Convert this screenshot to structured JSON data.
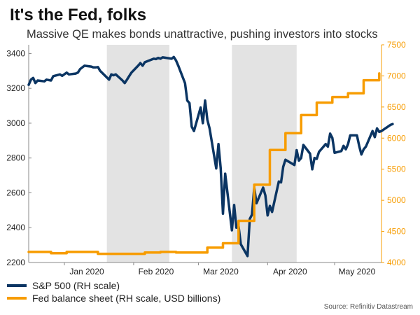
{
  "title": "It's the Fed, folks",
  "subtitle": "Massive QE makes bonds unattractive, pushing investors into stocks",
  "source": "Source: Refinitiv Datastream",
  "colors": {
    "sp500": "#0b3563",
    "fed": "#f79c00",
    "shade": "#e3e3e3",
    "axis_left": "#222222",
    "axis_right": "#f79c00"
  },
  "legend": [
    {
      "label": "S&P 500 (RH scale)",
      "series": "sp500"
    },
    {
      "label": "Fed balance sheet (RH scale, USD billions)",
      "series": "fed"
    }
  ],
  "chart_data": {
    "type": "line",
    "title": "It's the Fed, folks",
    "subtitle": "Massive QE makes bonds unattractive, pushing investors into stocks",
    "x_ticks": [
      {
        "label": "Jan 2020",
        "date": "2020-01-01"
      },
      {
        "label": "Feb 2020",
        "date": "2020-02-01"
      },
      {
        "label": "Mar 2020",
        "date": "2020-03-01"
      },
      {
        "label": "Apr 2020",
        "date": "2020-04-01"
      },
      {
        "label": "May 2020",
        "date": "2020-05-01"
      }
    ],
    "xlim": [
      "2019-12-16",
      "2020-05-22"
    ],
    "left_axis": {
      "ylim": [
        2200,
        3450
      ],
      "ticks": [
        2200,
        2400,
        2600,
        2800,
        3000,
        3200,
        3400
      ]
    },
    "right_axis": {
      "ylim": [
        4000,
        7500
      ],
      "ticks": [
        4000,
        4500,
        5000,
        5500,
        6000,
        6500,
        7000,
        7500
      ]
    },
    "shaded_periods": [
      [
        "2020-01-20",
        "2020-02-17"
      ],
      [
        "2020-03-16",
        "2020-04-14"
      ]
    ],
    "grid": false,
    "legend_position": "bottom-left",
    "series": [
      {
        "name": "S&P 500 (RH scale)",
        "axis": "left",
        "style": "line",
        "points": [
          [
            "2019-12-16",
            3220
          ],
          [
            "2019-12-17",
            3250
          ],
          [
            "2019-12-18",
            3260
          ],
          [
            "2019-12-19",
            3230
          ],
          [
            "2019-12-20",
            3245
          ],
          [
            "2019-12-23",
            3240
          ],
          [
            "2019-12-24",
            3250
          ],
          [
            "2019-12-26",
            3245
          ],
          [
            "2019-12-27",
            3270
          ],
          [
            "2019-12-30",
            3280
          ],
          [
            "2019-12-31",
            3272
          ],
          [
            "2020-01-02",
            3290
          ],
          [
            "2020-01-03",
            3280
          ],
          [
            "2020-01-06",
            3285
          ],
          [
            "2020-01-07",
            3290
          ],
          [
            "2020-01-08",
            3310
          ],
          [
            "2020-01-09",
            3320
          ],
          [
            "2020-01-10",
            3330
          ],
          [
            "2020-01-13",
            3325
          ],
          [
            "2020-01-14",
            3320
          ],
          [
            "2020-01-15",
            3320
          ],
          [
            "2020-01-16",
            3322
          ],
          [
            "2020-01-17",
            3300
          ],
          [
            "2020-01-21",
            3250
          ],
          [
            "2020-01-22",
            3280
          ],
          [
            "2020-01-23",
            3275
          ],
          [
            "2020-01-24",
            3280
          ],
          [
            "2020-01-27",
            3245
          ],
          [
            "2020-01-28",
            3230
          ],
          [
            "2020-01-29",
            3250
          ],
          [
            "2020-01-30",
            3270
          ],
          [
            "2020-01-31",
            3290
          ],
          [
            "2020-02-03",
            3330
          ],
          [
            "2020-02-04",
            3345
          ],
          [
            "2020-02-05",
            3330
          ],
          [
            "2020-02-06",
            3350
          ],
          [
            "2020-02-07",
            3355
          ],
          [
            "2020-02-10",
            3370
          ],
          [
            "2020-02-11",
            3368
          ],
          [
            "2020-02-12",
            3375
          ],
          [
            "2020-02-13",
            3370
          ],
          [
            "2020-02-14",
            3378
          ],
          [
            "2020-02-18",
            3370
          ],
          [
            "2020-02-19",
            3380
          ],
          [
            "2020-02-20",
            3360
          ],
          [
            "2020-02-21",
            3330
          ],
          [
            "2020-02-24",
            3230
          ],
          [
            "2020-02-25",
            3130
          ],
          [
            "2020-02-26",
            3115
          ],
          [
            "2020-02-27",
            2980
          ],
          [
            "2020-02-28",
            2955
          ],
          [
            "2020-03-02",
            3090
          ],
          [
            "2020-03-03",
            3000
          ],
          [
            "2020-03-04",
            3130
          ],
          [
            "2020-03-05",
            3020
          ],
          [
            "2020-03-06",
            2970
          ],
          [
            "2020-03-09",
            2740
          ],
          [
            "2020-03-10",
            2880
          ],
          [
            "2020-03-11",
            2740
          ],
          [
            "2020-03-12",
            2480
          ],
          [
            "2020-03-13",
            2710
          ],
          [
            "2020-03-16",
            2385
          ],
          [
            "2020-03-17",
            2530
          ],
          [
            "2020-03-18",
            2400
          ],
          [
            "2020-03-19",
            2410
          ],
          [
            "2020-03-20",
            2305
          ],
          [
            "2020-03-23",
            2237
          ],
          [
            "2020-03-24",
            2450
          ],
          [
            "2020-03-25",
            2475
          ],
          [
            "2020-03-26",
            2630
          ],
          [
            "2020-03-27",
            2540
          ],
          [
            "2020-03-30",
            2630
          ],
          [
            "2020-03-31",
            2585
          ],
          [
            "2020-04-01",
            2470
          ],
          [
            "2020-04-02",
            2525
          ],
          [
            "2020-04-03",
            2490
          ],
          [
            "2020-04-06",
            2665
          ],
          [
            "2020-04-07",
            2660
          ],
          [
            "2020-04-08",
            2750
          ],
          [
            "2020-04-09",
            2790
          ],
          [
            "2020-04-13",
            2760
          ],
          [
            "2020-04-14",
            2845
          ],
          [
            "2020-04-15",
            2785
          ],
          [
            "2020-04-16",
            2800
          ],
          [
            "2020-04-17",
            2875
          ],
          [
            "2020-04-20",
            2825
          ],
          [
            "2020-04-21",
            2735
          ],
          [
            "2020-04-22",
            2800
          ],
          [
            "2020-04-23",
            2795
          ],
          [
            "2020-04-24",
            2835
          ],
          [
            "2020-04-27",
            2880
          ],
          [
            "2020-04-28",
            2865
          ],
          [
            "2020-04-29",
            2940
          ],
          [
            "2020-04-30",
            2915
          ],
          [
            "2020-05-01",
            2830
          ],
          [
            "2020-05-04",
            2840
          ],
          [
            "2020-05-05",
            2870
          ],
          [
            "2020-05-06",
            2850
          ],
          [
            "2020-05-07",
            2880
          ],
          [
            "2020-05-08",
            2930
          ],
          [
            "2020-05-11",
            2930
          ],
          [
            "2020-05-12",
            2870
          ],
          [
            "2020-05-13",
            2820
          ],
          [
            "2020-05-14",
            2850
          ],
          [
            "2020-05-15",
            2865
          ],
          [
            "2020-05-18",
            2955
          ],
          [
            "2020-05-19",
            2920
          ],
          [
            "2020-05-20",
            2970
          ],
          [
            "2020-05-21",
            2950
          ],
          [
            "2020-05-22",
            2955
          ],
          [
            "2020-05-26",
            2990
          ],
          [
            "2020-05-27",
            2995
          ]
        ]
      },
      {
        "name": "Fed balance sheet (RH scale, USD billions)",
        "axis": "right",
        "style": "step",
        "points": [
          [
            "2019-12-16",
            4170
          ],
          [
            "2019-12-26",
            4150
          ],
          [
            "2020-01-02",
            4170
          ],
          [
            "2020-01-09",
            4170
          ],
          [
            "2020-01-16",
            4140
          ],
          [
            "2020-01-23",
            4140
          ],
          [
            "2020-01-30",
            4140
          ],
          [
            "2020-02-06",
            4160
          ],
          [
            "2020-02-13",
            4170
          ],
          [
            "2020-02-20",
            4160
          ],
          [
            "2020-02-27",
            4160
          ],
          [
            "2020-03-05",
            4240
          ],
          [
            "2020-03-12",
            4310
          ],
          [
            "2020-03-19",
            4670
          ],
          [
            "2020-03-26",
            5250
          ],
          [
            "2020-04-02",
            5810
          ],
          [
            "2020-04-09",
            6080
          ],
          [
            "2020-04-16",
            6370
          ],
          [
            "2020-04-23",
            6570
          ],
          [
            "2020-04-30",
            6660
          ],
          [
            "2020-05-07",
            6720
          ],
          [
            "2020-05-14",
            6930
          ],
          [
            "2020-05-21",
            7040
          ]
        ]
      }
    ]
  }
}
